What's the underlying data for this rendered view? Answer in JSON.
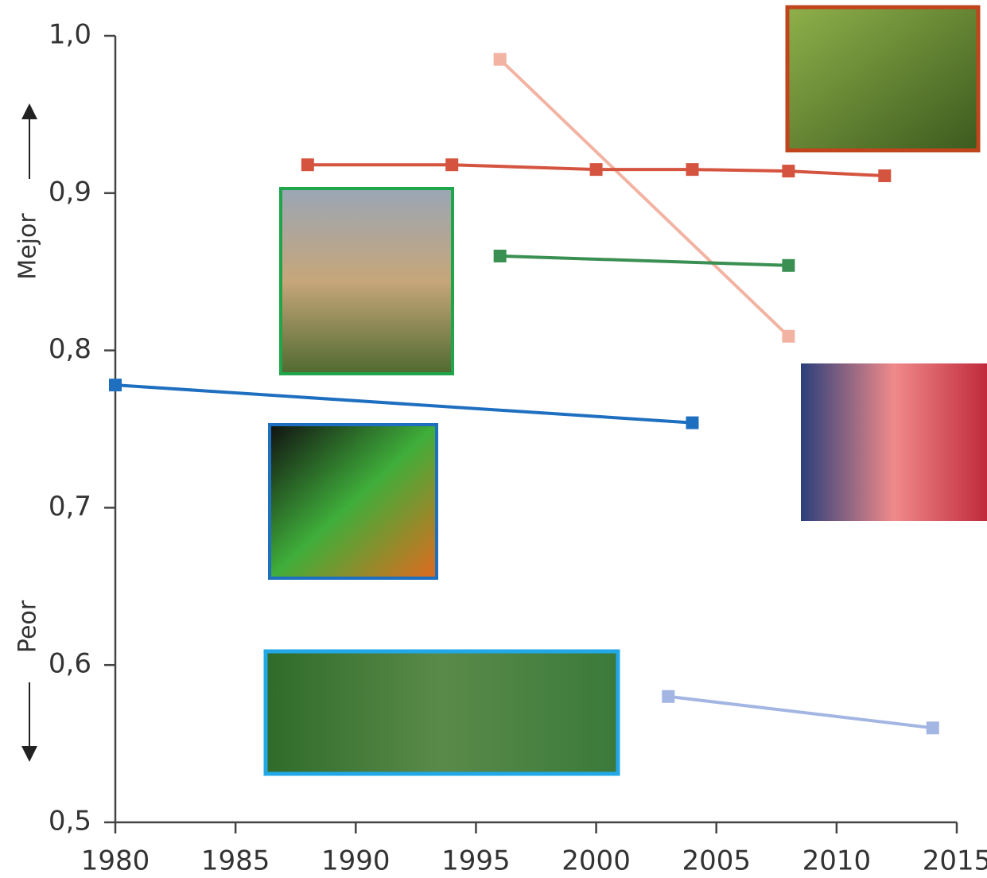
{
  "chart_data": {
    "type": "line",
    "series": [
      {
        "color": "#f2b3a2",
        "x": [
          1996,
          2008
        ],
        "values": [
          0.985,
          0.809
        ]
      },
      {
        "color": "#d5543f",
        "x": [
          1988,
          1994,
          2000,
          2004,
          2008,
          2012
        ],
        "values": [
          0.918,
          0.918,
          0.915,
          0.915,
          0.914,
          0.911
        ]
      },
      {
        "color": "#3a8f52",
        "x": [
          1996,
          2008
        ],
        "values": [
          0.86,
          0.854
        ]
      },
      {
        "color": "#1f6fc0",
        "x": [
          1980,
          2004
        ],
        "values": [
          0.778,
          0.754
        ]
      },
      {
        "color": "#a3b5e3",
        "x": [
          2003,
          2014
        ],
        "values": [
          0.58,
          0.56
        ]
      }
    ],
    "xlim": [
      1980,
      2015
    ],
    "xticks": [
      1980,
      1985,
      1990,
      1995,
      2000,
      2005,
      2010,
      2015
    ],
    "ylim": [
      0.5,
      1.0
    ],
    "yticks": [
      {
        "value": 0.5,
        "label": "0,5"
      },
      {
        "value": 0.6,
        "label": "0,6"
      },
      {
        "value": 0.7,
        "label": "0,7"
      },
      {
        "value": 0.8,
        "label": "0,8"
      },
      {
        "value": 0.9,
        "label": "0,9"
      },
      {
        "value": 1.0,
        "label": "1,0"
      }
    ],
    "annotations": [
      "Mejor",
      "Peor"
    ],
    "grid": false
  }
}
